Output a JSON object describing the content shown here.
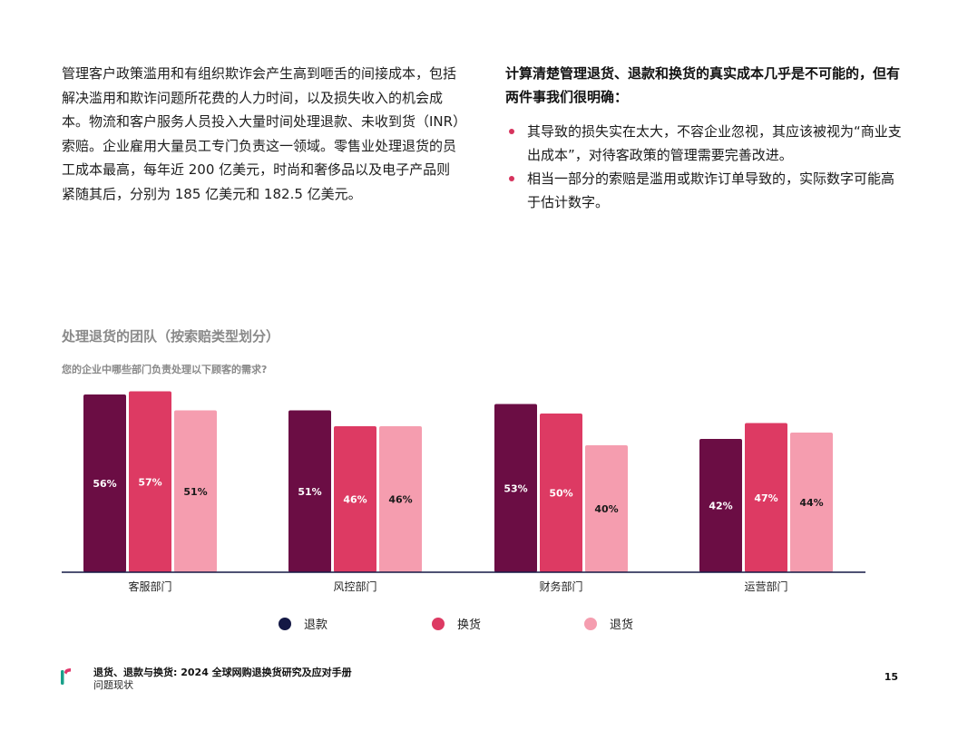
{
  "left_paragraph": "管理客户政策滥用和有组织欺诈会产生高到咂舌的间接成本，包括解决滥用和欺诈问题所花费的人力时间，以及损失收入的机会成本。物流和客户服务人员投入大量时间处理退款、未收到货（INR）索赔。企业雇用大量员工专门负责这一领域。零售业处理退货的员工成本最高，每年近 200 亿美元，时尚和奢侈品以及电子产品则紧随其后，分别为 185 亿美元和 182.5 亿美元。",
  "right_heading": "计算清楚管理退货、退款和换货的真实成本几乎是不可能的，但有两件事我们很明确：",
  "bullets": [
    "其导致的损失实在太大，不容企业忽视，其应该被视为“商业支出成本”，对待客政策的管理需要完善改进。",
    "相当一部分的索赔是滥用或欺诈订单导致的，实际数字可能高于估计数字。"
  ],
  "colors": {
    "series1": "#6b0d44",
    "series2": "#dd3a63",
    "series3": "#f59daf",
    "legend1": "#141845",
    "bullet": "#d6335d",
    "logo1": "#1aa08a",
    "logo2": "#e0356a"
  },
  "chart_data": {
    "type": "bar",
    "title": "处理退货的团队（按索赔类型划分）",
    "subtitle": "您的企业中哪些部门负责处理以下顾客的需求?",
    "categories": [
      "客服部门",
      "风控部门",
      "财务部门",
      "运营部门"
    ],
    "series": [
      {
        "name": "退款",
        "values": [
          56,
          51,
          53,
          42
        ]
      },
      {
        "name": "换货",
        "values": [
          57,
          46,
          50,
          47
        ]
      },
      {
        "name": "退货",
        "values": [
          51,
          46,
          40,
          44
        ]
      }
    ],
    "value_suffix": "%",
    "ylim": [
      0,
      60
    ],
    "legend_position": "bottom",
    "grid": false
  },
  "footer": {
    "title": "退货、退款与换货: 2024 全球网购退换货研究及应对手册",
    "subtitle": "问题现状",
    "logo_icon": "brand-logo-icon",
    "page_number": "15"
  }
}
